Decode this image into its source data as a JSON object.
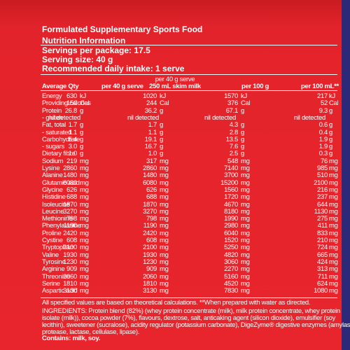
{
  "title": "Formulated Supplementary Sports Food",
  "section": "Nutrition Information",
  "serving": [
    "Servings per package: 17.5",
    "Serving size: 40 g",
    "Recommended daily intake: 1 serve"
  ],
  "table": {
    "group_header": "per 40 g serve",
    "headers": [
      "Average Qty",
      "per 40 g serve",
      "250 mL skim milk",
      "per 100 g",
      "per 100 mL**"
    ],
    "rows": [
      {
        "name": "Energy",
        "cells": [
          [
            "630",
            "kJ"
          ],
          [
            "1020",
            "kJ"
          ],
          [
            "1570",
            "kJ"
          ],
          [
            "217",
            "kJ"
          ]
        ]
      },
      {
        "name": "Providing calories",
        "cells": [
          [
            "150",
            "Cal"
          ],
          [
            "244",
            "Cal"
          ],
          [
            "376",
            "Cal"
          ],
          [
            "52",
            "Cal"
          ]
        ]
      },
      {
        "name": "Protein",
        "cells": [
          [
            "26.8",
            "g"
          ],
          [
            "36.2",
            "g"
          ],
          [
            "67.1",
            "g"
          ],
          [
            "9.3",
            "g"
          ]
        ]
      },
      {
        "name": "- gluten",
        "cells": [
          [
            "nil detected"
          ],
          [
            "nil detected"
          ],
          [
            "nil detected"
          ],
          [
            "nil detected"
          ]
        ]
      },
      {
        "name": "Fat, total",
        "cells": [
          [
            "1.7",
            "g"
          ],
          [
            "1.7",
            "g"
          ],
          [
            "4.3",
            "g"
          ],
          [
            "0.6",
            "g"
          ]
        ]
      },
      {
        "name": "- saturated",
        "cells": [
          [
            "1.1",
            "g"
          ],
          [
            "1.1",
            "g"
          ],
          [
            "2.8",
            "g"
          ],
          [
            "0.4",
            "g"
          ]
        ]
      },
      {
        "name": "Carbohydrate",
        "cells": [
          [
            "5.4",
            "g"
          ],
          [
            "19.1",
            "g"
          ],
          [
            "13.5",
            "g"
          ],
          [
            "1.9",
            "g"
          ]
        ]
      },
      {
        "name": "- sugars",
        "cells": [
          [
            "3.0",
            "g"
          ],
          [
            "16.7",
            "g"
          ],
          [
            "7.6",
            "g"
          ],
          [
            "1.9",
            "g"
          ]
        ]
      },
      {
        "name": "Dietary fibre",
        "cells": [
          [
            "1.0",
            "g"
          ],
          [
            "1.0",
            "g"
          ],
          [
            "2.5",
            "g"
          ],
          [
            "0.3",
            "g"
          ]
        ]
      },
      {
        "name": "Sodium",
        "cells": [
          [
            "219",
            "mg"
          ],
          [
            "317",
            "mg"
          ],
          [
            "548",
            "mg"
          ],
          [
            "76",
            "mg"
          ]
        ]
      },
      {
        "name": "Lysine",
        "cells": [
          [
            "2860",
            "mg"
          ],
          [
            "2860",
            "mg"
          ],
          [
            "7140",
            "mg"
          ],
          [
            "985",
            "mg"
          ]
        ]
      },
      {
        "name": "Alanine",
        "cells": [
          [
            "1480",
            "mg"
          ],
          [
            "1480",
            "mg"
          ],
          [
            "3700",
            "mg"
          ],
          [
            "510",
            "mg"
          ]
        ]
      },
      {
        "name": "Glutamic acid",
        "cells": [
          [
            "6080",
            "mg"
          ],
          [
            "6080",
            "mg"
          ],
          [
            "15200",
            "mg"
          ],
          [
            "2100",
            "mg"
          ]
        ]
      },
      {
        "name": "Glycine",
        "cells": [
          [
            "626",
            "mg"
          ],
          [
            "626",
            "mg"
          ],
          [
            "1560",
            "mg"
          ],
          [
            "216",
            "mg"
          ]
        ]
      },
      {
        "name": "Histidine",
        "cells": [
          [
            "688",
            "mg"
          ],
          [
            "688",
            "mg"
          ],
          [
            "1720",
            "mg"
          ],
          [
            "237",
            "mg"
          ]
        ]
      },
      {
        "name": "Isoleucine",
        "cells": [
          [
            "1870",
            "mg"
          ],
          [
            "1870",
            "mg"
          ],
          [
            "4670",
            "mg"
          ],
          [
            "644",
            "mg"
          ]
        ]
      },
      {
        "name": "Leucine",
        "cells": [
          [
            "3270",
            "mg"
          ],
          [
            "3270",
            "mg"
          ],
          [
            "8180",
            "mg"
          ],
          [
            "1130",
            "mg"
          ]
        ]
      },
      {
        "name": "Methionine",
        "cells": [
          [
            "798",
            "mg"
          ],
          [
            "798",
            "mg"
          ],
          [
            "1990",
            "mg"
          ],
          [
            "275",
            "mg"
          ]
        ]
      },
      {
        "name": "Phenylalanine",
        "cells": [
          [
            "1190",
            "mg"
          ],
          [
            "1190",
            "mg"
          ],
          [
            "2980",
            "mg"
          ],
          [
            "411",
            "mg"
          ]
        ]
      },
      {
        "name": "Proline",
        "cells": [
          [
            "2420",
            "mg"
          ],
          [
            "2420",
            "mg"
          ],
          [
            "6040",
            "mg"
          ],
          [
            "833",
            "mg"
          ]
        ]
      },
      {
        "name": "Cystine",
        "cells": [
          [
            "608",
            "mg"
          ],
          [
            "608",
            "mg"
          ],
          [
            "1520",
            "mg"
          ],
          [
            "210",
            "mg"
          ]
        ]
      },
      {
        "name": "Tryptophan",
        "cells": [
          [
            "2100",
            "mg"
          ],
          [
            "2100",
            "mg"
          ],
          [
            "5250",
            "mg"
          ],
          [
            "724",
            "mg"
          ]
        ]
      },
      {
        "name": "Valine",
        "cells": [
          [
            "1930",
            "mg"
          ],
          [
            "1930",
            "mg"
          ],
          [
            "4820",
            "mg"
          ],
          [
            "665",
            "mg"
          ]
        ]
      },
      {
        "name": "Tyrosine",
        "cells": [
          [
            "1230",
            "mg"
          ],
          [
            "1230",
            "mg"
          ],
          [
            "3060",
            "mg"
          ],
          [
            "424",
            "mg"
          ]
        ]
      },
      {
        "name": "Arginine",
        "cells": [
          [
            "909",
            "mg"
          ],
          [
            "909",
            "mg"
          ],
          [
            "2270",
            "mg"
          ],
          [
            "313",
            "mg"
          ]
        ]
      },
      {
        "name": "Threonine",
        "cells": [
          [
            "2060",
            "mg"
          ],
          [
            "2060",
            "mg"
          ],
          [
            "5160",
            "mg"
          ],
          [
            "711",
            "mg"
          ]
        ]
      },
      {
        "name": "Serine",
        "cells": [
          [
            "1810",
            "mg"
          ],
          [
            "1810",
            "mg"
          ],
          [
            "4520",
            "mg"
          ],
          [
            "624",
            "mg"
          ]
        ]
      },
      {
        "name": "Aspartic acid",
        "cells": [
          [
            "3130",
            "mg"
          ],
          [
            "3130",
            "mg"
          ],
          [
            "7830",
            "mg"
          ],
          [
            "1080",
            "mg"
          ]
        ]
      }
    ]
  },
  "footnote": "All specified values are based on theoretical calculations. **When prepared with water as directed.",
  "ingredients": [
    "INGREDIENTS: Protein blend (82%) (whey protein concentrate (milk), milk protein concentrate, whey protein",
    "isolate (milk)), cocoa powder (7%), flavours, dextrose, salt, anticaking agent (silicon dioxide), emulsifier (soy",
    "lecithin), sweetener (sucralose), acidity regulator (potassium carbonate), DigeZyme® digestive enzymes (amylase,",
    "protease, lactase, cellulase, lipase)."
  ],
  "contains": "Contains: milk, soy."
}
